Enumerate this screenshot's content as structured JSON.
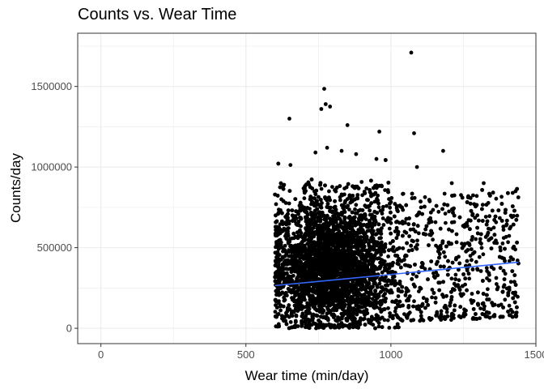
{
  "chart_data": {
    "type": "scatter",
    "title": "Counts vs. Wear Time",
    "xlabel": "Wear time (min/day)",
    "ylabel": "Counts/day",
    "xlim": [
      -80,
      1500
    ],
    "ylim": [
      -95000,
      1830000
    ],
    "x_ticks": [
      0,
      500,
      1000,
      1500
    ],
    "x_tick_labels": [
      "0",
      "500",
      "1000",
      "1500"
    ],
    "y_ticks": [
      0,
      500000,
      1000000,
      1500000
    ],
    "y_tick_labels": [
      "0",
      "500000",
      "1000000",
      "1500000"
    ],
    "grid": true,
    "legend": "none",
    "colors": {
      "points": "#000000",
      "trend": "#3366ff",
      "grid": "#ebebeb",
      "panel_border": "#333333"
    },
    "trend_line": {
      "x": [
        600,
        1440
      ],
      "y": [
        265000,
        410000
      ]
    },
    "notable_points": {
      "x": [
        1070,
        770,
        775,
        790,
        760,
        650,
        850,
        960,
        1080,
        1180,
        780,
        740,
        830,
        880,
        950,
        1090,
        1210,
        1320,
        1420,
        1430
      ],
      "y": [
        1710000,
        1485000,
        1390000,
        1375000,
        1360000,
        1300000,
        1260000,
        1220000,
        1210000,
        1100000,
        1120000,
        1090000,
        1100000,
        1080000,
        1050000,
        1000000,
        900000,
        900000,
        840000,
        850000
      ]
    },
    "point_cloud": {
      "count": 6000,
      "x_range": [
        600,
        1440
      ],
      "y_range": [
        0,
        1100000
      ],
      "dense_center": [
        800,
        380000
      ]
    }
  }
}
